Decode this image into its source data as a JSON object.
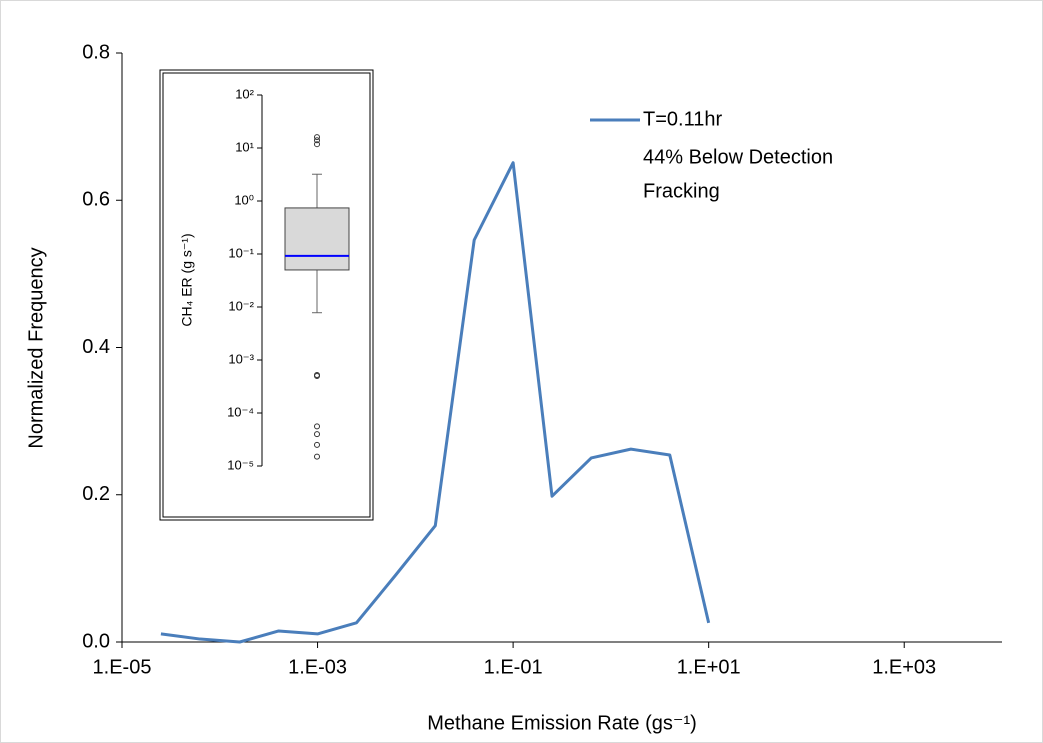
{
  "chart_data": [
    {
      "type": "line",
      "x_label": "Methane Emission Rate (gs⁻¹)",
      "y_label": "Normalized Frequency",
      "x": [
        2.5e-05,
        6.3e-05,
        0.00016,
        0.0004,
        0.001,
        0.0025,
        0.0063,
        0.016,
        0.04,
        0.1,
        0.25,
        0.63,
        1.6,
        4,
        10
      ],
      "series": [
        {
          "name": "T=0.11hr",
          "color": "#4a7ebb",
          "values": [
            0.011,
            0.004,
            0,
            0.015,
            0.011,
            0.026,
            0.091,
            0.158,
            0.546,
            0.651,
            0.198,
            0.25,
            0.262,
            0.254,
            0.026
          ]
        }
      ],
      "annotations": [
        "44% Below Detection",
        "Fracking"
      ],
      "xscale": "log",
      "xlim": [
        1e-05,
        10000.0
      ],
      "xticks": [
        {
          "value": 1e-05,
          "label": "1.E-05"
        },
        {
          "value": 0.001,
          "label": "1.E-03"
        },
        {
          "value": 0.1,
          "label": "1.E-01"
        },
        {
          "value": 10,
          "label": "1.E+01"
        },
        {
          "value": 1000,
          "label": "1.E+03"
        }
      ],
      "ylim": [
        0,
        0.8
      ],
      "yticks": [
        {
          "value": 0,
          "label": "0.0"
        },
        0.2,
        0.4,
        0.6,
        0.8
      ]
    },
    {
      "type": "box",
      "y_label": "CH₄ ER (g s⁻¹)",
      "yscale": "log",
      "ylim": [
        1e-05,
        100
      ],
      "yticks": [
        {
          "value": 1e-05,
          "label": "10⁻⁵"
        },
        {
          "value": 0.0001,
          "label": "10⁻⁴"
        },
        {
          "value": 0.001,
          "label": "10⁻³"
        },
        {
          "value": 0.01,
          "label": "10⁻²"
        },
        {
          "value": 0.1,
          "label": "10⁻¹"
        },
        {
          "value": 1,
          "label": "10⁰"
        },
        {
          "value": 10,
          "label": "10¹"
        },
        {
          "value": 100,
          "label": "10²"
        }
      ],
      "box": {
        "whislo": 0.0078,
        "q1": 0.05,
        "med": 0.092,
        "q3": 0.74,
        "whishi": 3.2,
        "fliers": [
          16,
          14,
          11.8,
          0.00052,
          0.0005,
          5.6e-05,
          4e-05,
          2.5e-05,
          1.5e-05
        ]
      },
      "color": "#d9d9d9",
      "median_color": "#0000ff"
    }
  ]
}
